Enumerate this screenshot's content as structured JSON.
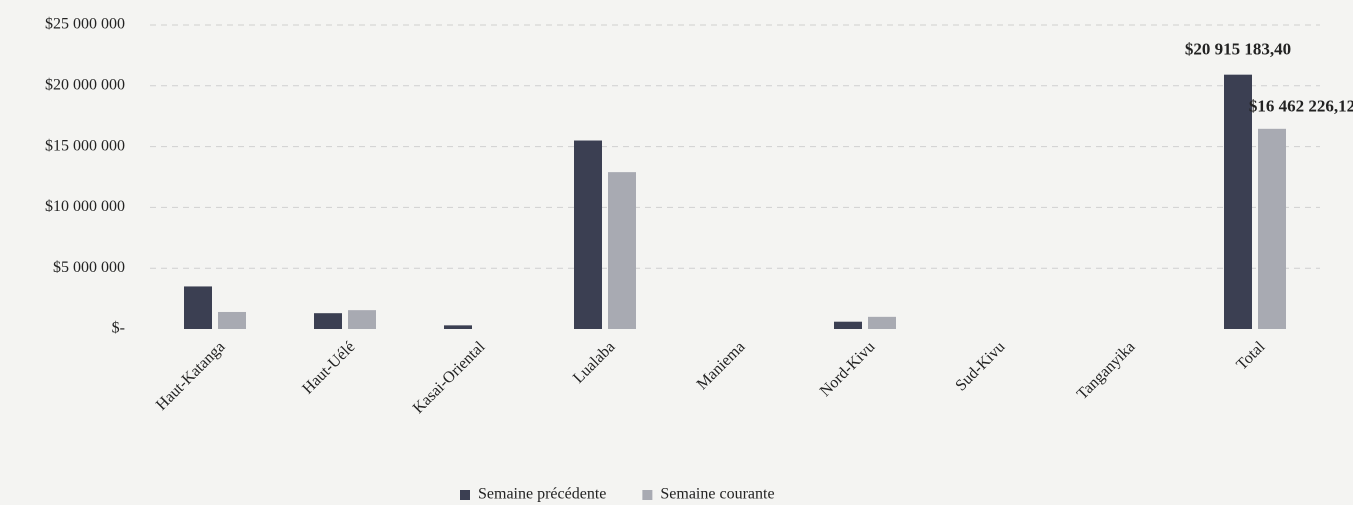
{
  "chart_data": {
    "type": "bar",
    "categories": [
      "Haut-Katanga",
      "Haut-Uélé",
      "Kasai-Oriental",
      "Lualaba",
      "Maniema",
      "Nord-Kivu",
      "Sud-Kivu",
      "Tanganyika",
      "Total"
    ],
    "series": [
      {
        "name": "Semaine précédente",
        "color": "#3b3f52",
        "values": [
          3500000,
          1300000,
          300000,
          15500000,
          0,
          600000,
          0,
          0,
          20915183.4
        ],
        "value_labels": [
          null,
          null,
          null,
          null,
          null,
          null,
          null,
          null,
          "$20 915 183,40"
        ]
      },
      {
        "name": "Semaine courante",
        "color": "#a8aab2",
        "values": [
          1400000,
          1550000,
          0,
          12900000,
          0,
          1000000,
          0,
          0,
          16462226.12
        ],
        "value_labels": [
          null,
          null,
          null,
          null,
          null,
          null,
          null,
          null,
          "$16 462 226,12"
        ]
      }
    ],
    "ylim": [
      0,
      25000000
    ],
    "yticks": [
      {
        "value": 0,
        "label": "$-"
      },
      {
        "value": 5000000,
        "label": "$5 000 000"
      },
      {
        "value": 10000000,
        "label": "$10 000 000"
      },
      {
        "value": 15000000,
        "label": "$15 000 000"
      },
      {
        "value": 20000000,
        "label": "$20 000 000"
      },
      {
        "value": 25000000,
        "label": "$25 000 000"
      }
    ],
    "grid": true,
    "legend": "bottom"
  }
}
